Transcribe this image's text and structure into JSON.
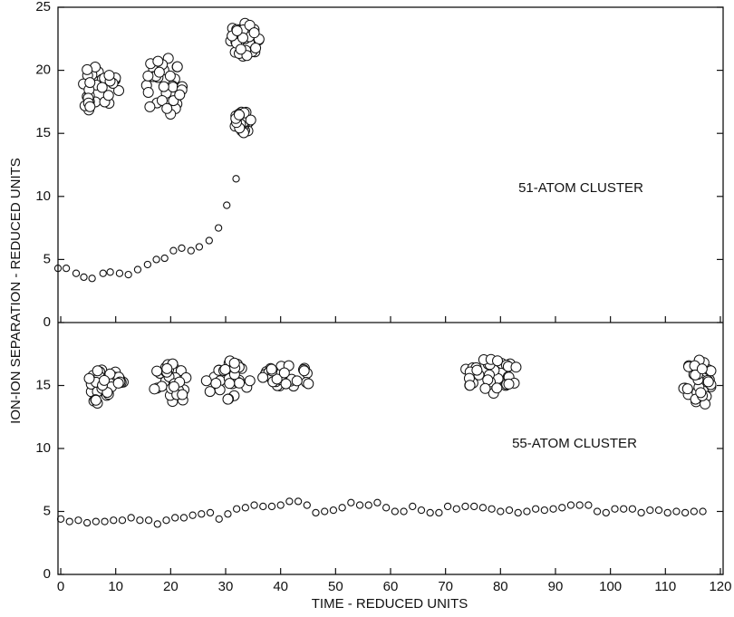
{
  "chart_data": [
    {
      "type": "scatter",
      "ylabel": "ION-ION SEPARATION - REDUCED UNITS",
      "annotation": "51-ATOM CLUSTER",
      "color": "#111111",
      "xlim": [
        -0.5,
        120.5
      ],
      "ylim": [
        0,
        25
      ],
      "xticks": [
        0,
        10,
        20,
        30,
        40,
        50,
        60,
        70,
        80,
        90,
        100,
        110,
        120
      ],
      "yticks": [
        0,
        5,
        10,
        15,
        20,
        25
      ],
      "x": [
        -0.5,
        1,
        2.8,
        4.2,
        5.7,
        7.7,
        9,
        10.7,
        12.3,
        14,
        15.8,
        17.4,
        18.9,
        20.5,
        22,
        23.7,
        25.2,
        27,
        28.7,
        30.2,
        31.9
      ],
      "values": [
        4.3,
        4.3,
        3.9,
        3.6,
        3.5,
        3.9,
        4.0,
        3.9,
        3.8,
        4.2,
        4.6,
        5.0,
        5.1,
        5.7,
        5.9,
        5.7,
        6.0,
        6.5,
        7.5,
        9.3,
        11.4
      ]
    },
    {
      "type": "scatter",
      "xlabel": "TIME - REDUCED UNITS",
      "annotation": "55-ATOM CLUSTER",
      "color": "#111111",
      "xlim": [
        -0.5,
        120.5
      ],
      "ylim": [
        0,
        20
      ],
      "xticks": [
        0,
        10,
        20,
        30,
        40,
        50,
        60,
        70,
        80,
        90,
        100,
        110,
        120
      ],
      "yticks": [
        0,
        5,
        10,
        15
      ],
      "x": [
        0,
        1.6,
        3.2,
        4.8,
        6.4,
        8,
        9.6,
        11.2,
        12.8,
        14.4,
        16,
        17.6,
        19.2,
        20.8,
        22.4,
        24,
        25.6,
        27.2,
        28.8,
        30.4,
        32,
        33.6,
        35.2,
        36.8,
        38.4,
        40,
        41.6,
        43.2,
        44.8,
        46.4,
        48,
        49.6,
        51.2,
        52.8,
        54.4,
        56,
        57.6,
        59.2,
        60.8,
        62.4,
        64,
        65.6,
        67.2,
        68.8,
        70.4,
        72,
        73.6,
        75.2,
        76.8,
        78.4,
        80,
        81.6,
        83.2,
        84.8,
        86.4,
        88,
        89.6,
        91.2,
        92.8,
        94.4,
        96,
        97.6,
        99.2,
        100.8,
        102.4,
        104,
        105.6,
        107.2,
        108.8,
        110.4,
        112,
        113.6,
        115.2,
        116.8
      ],
      "values": [
        4.4,
        4.2,
        4.3,
        4.1,
        4.2,
        4.2,
        4.3,
        4.3,
        4.5,
        4.3,
        4.3,
        4.0,
        4.3,
        4.5,
        4.5,
        4.7,
        4.8,
        4.9,
        4.4,
        4.8,
        5.2,
        5.3,
        5.5,
        5.4,
        5.4,
        5.5,
        5.8,
        5.8,
        5.5,
        4.9,
        5.0,
        5.1,
        5.3,
        5.7,
        5.5,
        5.5,
        5.7,
        5.3,
        5.0,
        5.0,
        5.4,
        5.1,
        4.9,
        4.9,
        5.4,
        5.2,
        5.4,
        5.4,
        5.3,
        5.2,
        5.0,
        5.1,
        4.9,
        5.0,
        5.2,
        5.1,
        5.2,
        5.3,
        5.5,
        5.5,
        5.5,
        5.0,
        4.9,
        5.2,
        5.2,
        5.2,
        4.9,
        5.1,
        5.1,
        4.9,
        5.0,
        4.9,
        5.0,
        5.0
      ]
    }
  ]
}
